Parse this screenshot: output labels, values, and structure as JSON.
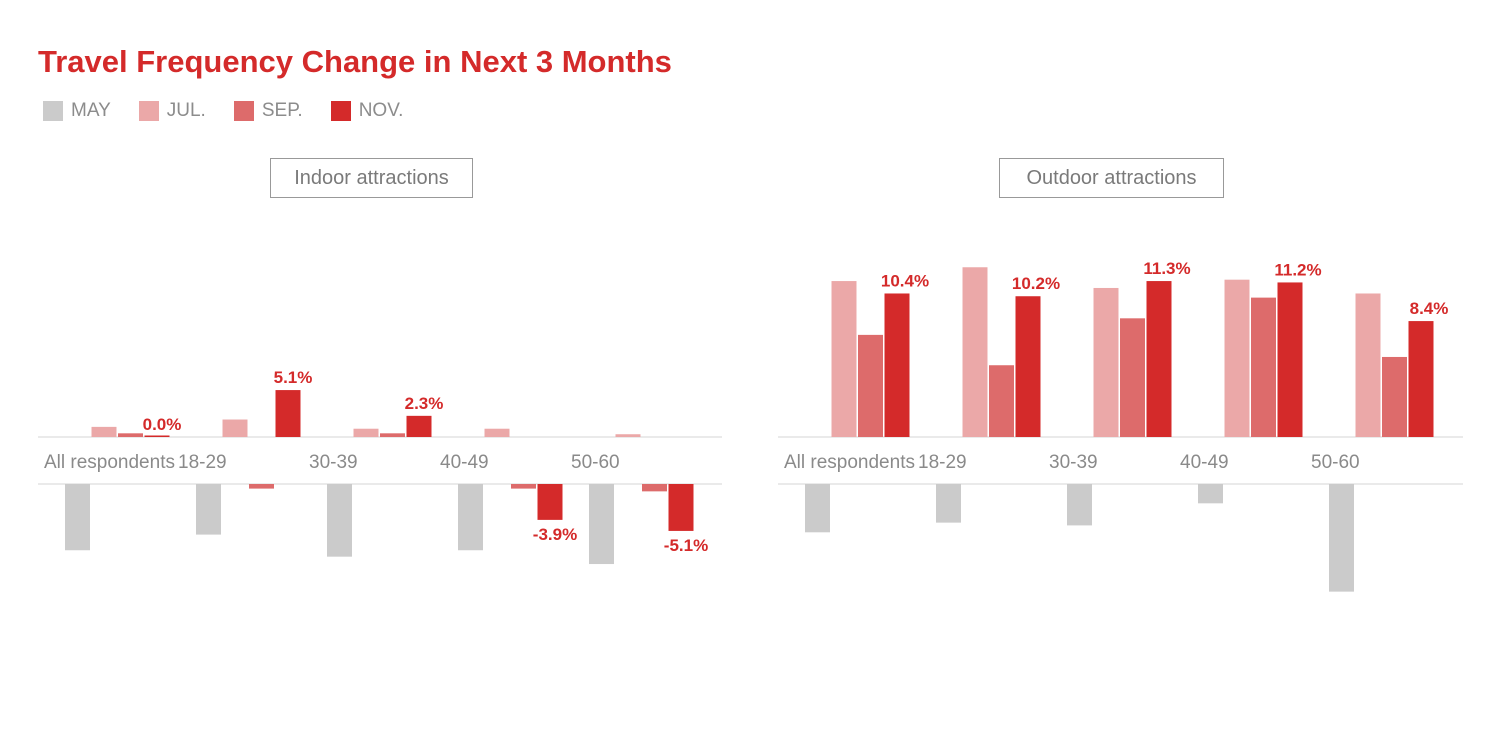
{
  "title": "Travel Frequency Change in Next 3 Months",
  "legend": [
    {
      "label": "MAY",
      "color": "#cbcbcb"
    },
    {
      "label": "JUL.",
      "color": "#eba8a8"
    },
    {
      "label": "SEP.",
      "color": "#dd6b6b"
    },
    {
      "label": "NOV.",
      "color": "#d42a2a"
    }
  ],
  "chart_data": [
    {
      "type": "bar",
      "title": "Indoor attractions",
      "categories": [
        "All respondents",
        "18-29",
        "30-39",
        "40-49",
        "50-60"
      ],
      "series": [
        {
          "name": "MAY",
          "values": [
            -7.2,
            -5.5,
            -7.9,
            -7.2,
            -8.7
          ]
        },
        {
          "name": "JUL.",
          "values": [
            1.1,
            1.9,
            0.9,
            0.9,
            0.3
          ]
        },
        {
          "name": "SEP.",
          "values": [
            0.4,
            -0.5,
            0.4,
            -0.5,
            -0.8
          ]
        },
        {
          "name": "NOV.",
          "values": [
            0.0,
            5.1,
            2.3,
            -3.9,
            -5.1
          ]
        }
      ],
      "value_labels": [
        "0.0%",
        "5.1%",
        "2.3%",
        "-3.9%",
        "-5.1%"
      ],
      "grid": false,
      "legend_position": "top-left"
    },
    {
      "type": "bar",
      "title": "Outdoor attractions",
      "categories": [
        "All respondents",
        "18-29",
        "30-39",
        "40-49",
        "50-60"
      ],
      "series": [
        {
          "name": "MAY",
          "values": [
            -3.5,
            -2.8,
            -3.0,
            -1.4,
            -7.8
          ]
        },
        {
          "name": "JUL.",
          "values": [
            11.3,
            12.3,
            10.8,
            11.4,
            10.4
          ]
        },
        {
          "name": "SEP.",
          "values": [
            7.4,
            5.2,
            8.6,
            10.1,
            5.8
          ]
        },
        {
          "name": "NOV.",
          "values": [
            10.4,
            10.2,
            11.3,
            11.2,
            8.4
          ]
        }
      ],
      "value_labels": [
        "10.4%",
        "10.2%",
        "11.3%",
        "11.2%",
        "8.4%"
      ],
      "grid": false,
      "legend_position": "top-left"
    }
  ]
}
